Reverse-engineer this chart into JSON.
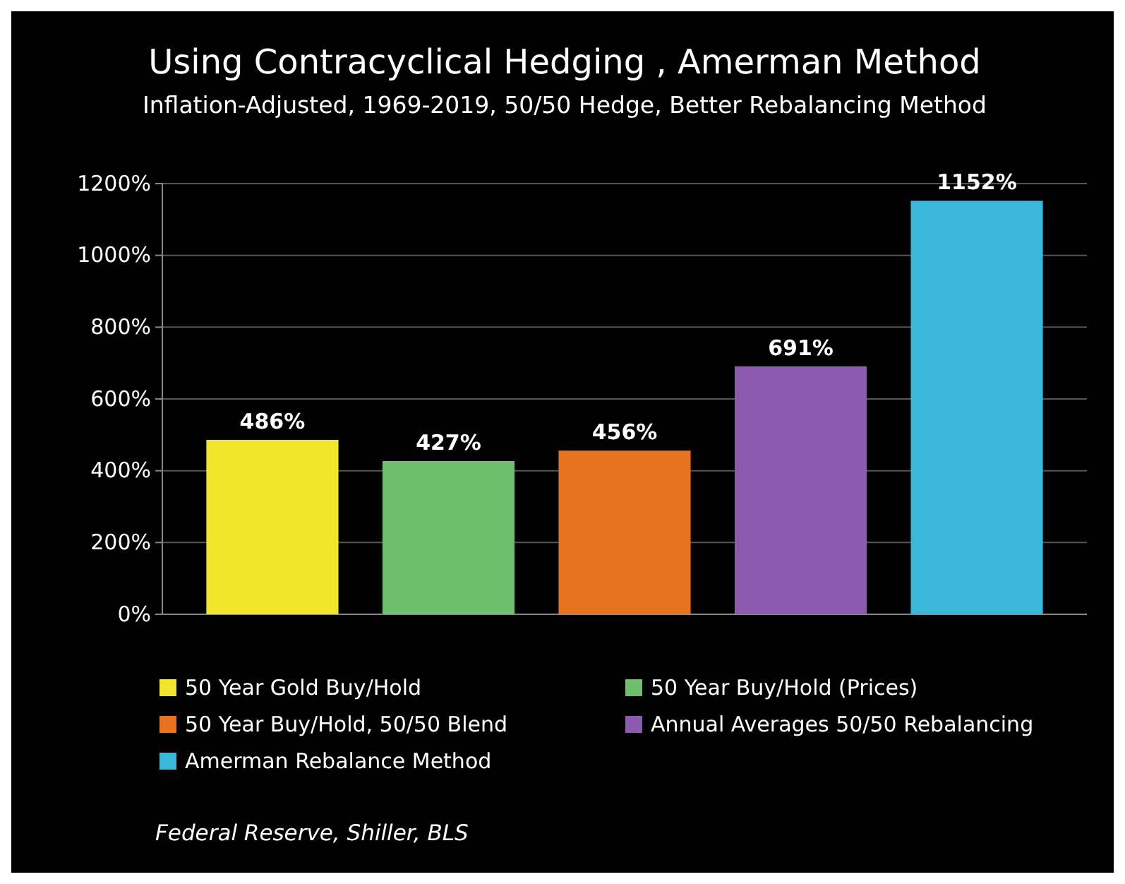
{
  "chart_data": {
    "type": "bar",
    "title": "Using Contracyclical Hedging , Amerman Method",
    "subtitle": "Inflation-Adjusted, 1969-2019, 50/50 Hedge, Better Rebalancing Method",
    "categories": [
      null,
      null,
      null,
      null,
      null
    ],
    "stacked": true,
    "series": [
      {
        "name": "50 Year Gold Buy/Hold",
        "color": "#f2e62a",
        "values": [
          486,
          null,
          null,
          null,
          null
        ],
        "value_labels": [
          "486%",
          null,
          null,
          null,
          null
        ]
      },
      {
        "name": "50 Year Buy/Hold (Prices)",
        "color": "#6dbf6e",
        "values": [
          null,
          427,
          null,
          null,
          null
        ],
        "value_labels": [
          null,
          "427%",
          null,
          null,
          null
        ]
      },
      {
        "name": "50 Year Buy/Hold, 50/50 Blend",
        "color": "#e8731f",
        "values": [
          null,
          null,
          456,
          null,
          null
        ],
        "value_labels": [
          null,
          null,
          "456%",
          null,
          null
        ]
      },
      {
        "name": "Annual Averages 50/50 Rebalancing",
        "color": "#8c5bb0",
        "values": [
          null,
          null,
          null,
          691,
          null
        ],
        "value_labels": [
          null,
          null,
          null,
          "691%",
          null
        ]
      },
      {
        "name": "Amerman Rebalance Method",
        "color": "#3bb7dc",
        "values": [
          null,
          null,
          null,
          null,
          1152
        ],
        "value_labels": [
          null,
          null,
          null,
          null,
          "1152%"
        ]
      }
    ],
    "ylim": [
      0,
      1200
    ],
    "yticks": [
      {
        "value": 0,
        "label": "0%"
      },
      {
        "value": 200,
        "label": "200%"
      },
      {
        "value": 400,
        "label": "400%"
      },
      {
        "value": 600,
        "label": "600%"
      },
      {
        "value": 800,
        "label": "800%"
      },
      {
        "value": 1000,
        "label": "1000%"
      },
      {
        "value": 1200,
        "label": "1200%"
      }
    ],
    "grid": "y",
    "legend": "bottom",
    "annotations": [
      "Federal Reserve, Shiller, BLS"
    ]
  }
}
